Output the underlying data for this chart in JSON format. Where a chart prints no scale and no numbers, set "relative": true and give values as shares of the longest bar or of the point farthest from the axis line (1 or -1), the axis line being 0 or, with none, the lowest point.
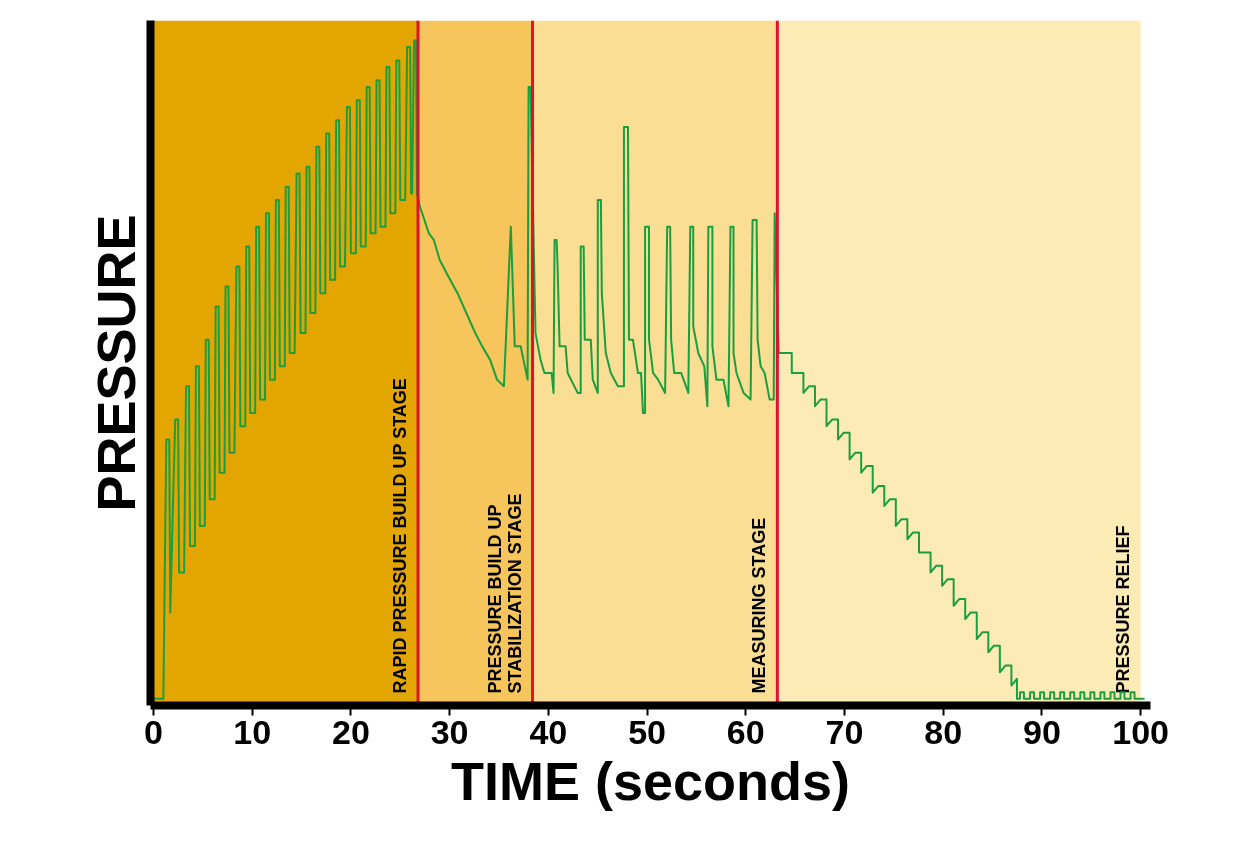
{
  "chart_data": {
    "type": "line",
    "relative": true,
    "xlabel": "TIME (seconds)",
    "ylabel": "PRESSURE",
    "xlim": [
      -0.3,
      101
    ],
    "xticks": [
      0,
      10,
      20,
      30,
      40,
      50,
      60,
      70,
      80,
      90,
      100
    ],
    "grid": false,
    "line_style": "solid",
    "bands": [
      {
        "axis": "x",
        "from": 0,
        "to": 26.8,
        "label": "RAPID PRESSURE BUILD UP STAGE",
        "color": "#e3a600"
      },
      {
        "axis": "x",
        "from": 26.8,
        "to": 38.4,
        "label": "PRESSURE BUILD UP\nSTABILIZATION STAGE",
        "color": "#f6c65c"
      },
      {
        "axis": "x",
        "from": 38.4,
        "to": 63.2,
        "label": "MEASURING STAGE",
        "color": "#f9de94"
      },
      {
        "axis": "x",
        "from": 63.2,
        "to": 100,
        "label": "PRESSURE RELIEF",
        "color": "#fdebb5"
      }
    ],
    "ref_lines": [
      {
        "axis": "x",
        "value": 26.8,
        "label": null,
        "color": "#e0102f"
      },
      {
        "axis": "x",
        "value": 38.4,
        "label": null,
        "color": "#e0102f"
      },
      {
        "axis": "x",
        "value": 63.2,
        "label": null,
        "color": "#e0102f"
      }
    ],
    "series": [
      {
        "color": "#1a9e3f",
        "x": [
          0,
          1.0,
          1.3,
          1.6,
          1.7,
          2.2,
          2.5,
          2.6,
          3.1,
          3.3,
          3.6,
          3.7,
          4.2,
          4.3,
          4.6,
          4.7,
          5.2,
          5.3,
          5.6,
          5.7,
          6.2,
          6.3,
          6.6,
          6.7,
          7.2,
          7.3,
          7.6,
          7.7,
          8.2,
          8.4,
          8.7,
          8.8,
          9.3,
          9.4,
          9.7,
          9.8,
          10.3,
          10.4,
          10.7,
          10.8,
          11.3,
          11.4,
          11.7,
          11.8,
          12.3,
          12.4,
          12.7,
          12.8,
          13.3,
          13.4,
          13.7,
          13.8,
          14.3,
          14.5,
          14.8,
          14.9,
          15.4,
          15.5,
          15.8,
          15.9,
          16.4,
          16.5,
          16.8,
          16.9,
          17.4,
          17.5,
          17.8,
          17.9,
          18.4,
          18.5,
          18.8,
          18.9,
          19.4,
          19.6,
          19.9,
          20.0,
          20.5,
          20.6,
          20.9,
          21.0,
          21.5,
          21.6,
          21.9,
          22.0,
          22.5,
          22.6,
          22.9,
          23.0,
          23.5,
          23.6,
          23.9,
          24.0,
          24.5,
          24.6,
          24.9,
          25.0,
          25.5,
          25.7,
          26.0,
          26.1,
          26.2,
          26.4,
          26.6,
          26.7,
          27.0,
          27.9,
          28.4,
          29.0,
          29.7,
          30.8,
          31.1,
          32.0,
          32.6,
          33.3,
          34.1,
          34.8,
          35.5,
          36.2,
          36.6,
          37.2,
          37.9,
          38.0,
          38.2,
          38.7,
          39.21,
          39.61,
          40.33,
          40.53,
          40.63,
          40.84,
          40.94,
          41.14,
          41.75,
          41.96,
          42.97,
          43.28,
          43.28,
          43.58,
          43.69,
          44.3,
          44.5,
          45.01,
          45.01,
          45.32,
          45.42,
          45.82,
          46.33,
          47.05,
          47.66,
          47.66,
          48.07,
          48.17,
          48.57,
          49.08,
          49.39,
          49.59,
          49.8,
          49.8,
          50.2,
          50.2,
          50.61,
          51.12,
          51.83,
          52.04,
          52.34,
          52.44,
          52.75,
          53.46,
          54.18,
          54.38,
          54.68,
          54.68,
          55.19,
          55.8,
          56.11,
          56.21,
          56.62,
          56.62,
          57.03,
          57.74,
          58.25,
          58.45,
          58.76,
          58.76,
          59.06,
          59.78,
          60.49,
          60.69,
          61.1,
          61.2,
          61.51,
          61.91,
          62.42,
          62.83,
          62.93,
          63.34,
          64.05,
          64.66,
          64.66,
          65.22,
          65.84,
          65.84,
          66.4,
          67.01,
          67.01,
          67.57,
          68.18,
          68.18,
          68.74,
          69.35,
          69.35,
          69.91,
          70.52,
          70.52,
          71.08,
          71.69,
          71.69,
          72.25,
          72.86,
          72.86,
          73.42,
          74.03,
          74.03,
          74.59,
          75.2,
          75.2,
          75.76,
          76.37,
          76.37,
          76.93,
          77.55,
          77.55,
          78.11,
          78.72,
          78.72,
          79.28,
          79.89,
          79.89,
          80.45,
          81.06,
          81.06,
          81.62,
          82.23,
          82.23,
          82.79,
          83.4,
          83.4,
          83.96,
          84.57,
          84.57,
          85.13,
          85.74,
          85.74,
          86.3,
          86.91,
          86.91,
          87.47,
          87.47,
          87.78,
          87.78,
          88.18,
          88.18,
          88.8,
          88.8,
          89.2,
          89.2,
          89.82,
          89.82,
          90.22,
          90.22,
          90.84,
          90.84,
          91.24,
          91.24,
          91.85,
          91.85,
          92.25,
          92.25,
          92.87,
          92.87,
          93.27,
          93.27,
          93.89,
          93.89,
          94.29,
          94.29,
          94.91,
          94.91,
          95.31,
          95.31,
          95.93,
          95.93,
          96.33,
          96.33,
          96.95,
          96.95,
          97.35,
          97.35,
          97.96,
          97.96,
          98.36,
          98.36,
          98.98,
          98.98,
          99.38,
          99.38,
          100.4
        ],
        "values": [
          0.01,
          0.01,
          0.4,
          0.4,
          0.14,
          0.43,
          0.43,
          0.2,
          0.2,
          0.48,
          0.48,
          0.24,
          0.24,
          0.51,
          0.51,
          0.27,
          0.27,
          0.55,
          0.55,
          0.31,
          0.31,
          0.6,
          0.6,
          0.35,
          0.35,
          0.63,
          0.63,
          0.38,
          0.38,
          0.66,
          0.66,
          0.42,
          0.42,
          0.69,
          0.69,
          0.44,
          0.44,
          0.72,
          0.72,
          0.46,
          0.46,
          0.74,
          0.74,
          0.49,
          0.49,
          0.76,
          0.76,
          0.51,
          0.51,
          0.78,
          0.78,
          0.53,
          0.53,
          0.8,
          0.8,
          0.56,
          0.56,
          0.81,
          0.81,
          0.59,
          0.59,
          0.84,
          0.84,
          0.62,
          0.62,
          0.86,
          0.86,
          0.64,
          0.64,
          0.88,
          0.88,
          0.66,
          0.66,
          0.9,
          0.9,
          0.68,
          0.68,
          0.91,
          0.91,
          0.69,
          0.69,
          0.93,
          0.93,
          0.71,
          0.71,
          0.94,
          0.94,
          0.72,
          0.72,
          0.96,
          0.96,
          0.74,
          0.74,
          0.97,
          0.97,
          0.76,
          0.76,
          0.99,
          0.99,
          0.77,
          0.77,
          1.0,
          1.0,
          0.77,
          0.75,
          0.71,
          0.7,
          0.67,
          0.65,
          0.62,
          0.61,
          0.58,
          0.56,
          0.54,
          0.52,
          0.49,
          0.48,
          0.72,
          0.54,
          0.54,
          0.49,
          0.93,
          0.93,
          0.56,
          0.52,
          0.5,
          0.5,
          0.47,
          0.7,
          0.7,
          0.66,
          0.54,
          0.54,
          0.5,
          0.47,
          0.47,
          0.69,
          0.69,
          0.55,
          0.55,
          0.49,
          0.47,
          0.76,
          0.76,
          0.62,
          0.53,
          0.5,
          0.48,
          0.48,
          0.87,
          0.87,
          0.55,
          0.55,
          0.5,
          0.5,
          0.44,
          0.44,
          0.72,
          0.72,
          0.55,
          0.5,
          0.49,
          0.47,
          0.72,
          0.72,
          0.55,
          0.5,
          0.5,
          0.47,
          0.72,
          0.72,
          0.57,
          0.53,
          0.51,
          0.45,
          0.72,
          0.72,
          0.54,
          0.49,
          0.49,
          0.45,
          0.72,
          0.72,
          0.53,
          0.5,
          0.47,
          0.46,
          0.73,
          0.73,
          0.55,
          0.51,
          0.5,
          0.46,
          0.46,
          0.74,
          0.53,
          0.53,
          0.53,
          0.5,
          0.5,
          0.5,
          0.47,
          0.48,
          0.48,
          0.45,
          0.46,
          0.46,
          0.42,
          0.43,
          0.43,
          0.4,
          0.41,
          0.41,
          0.37,
          0.38,
          0.38,
          0.35,
          0.36,
          0.36,
          0.32,
          0.33,
          0.33,
          0.3,
          0.31,
          0.31,
          0.27,
          0.28,
          0.28,
          0.25,
          0.26,
          0.26,
          0.23,
          0.23,
          0.23,
          0.2,
          0.21,
          0.21,
          0.18,
          0.19,
          0.19,
          0.15,
          0.16,
          0.16,
          0.13,
          0.14,
          0.14,
          0.1,
          0.11,
          0.11,
          0.08,
          0.09,
          0.09,
          0.05,
          0.06,
          0.06,
          0.03,
          0.04,
          0.01,
          0.01,
          0.02,
          0.02,
          0.01,
          0.01,
          0.02,
          0.02,
          0.01,
          0.01,
          0.02,
          0.02,
          0.01,
          0.01,
          0.02,
          0.02,
          0.01,
          0.01,
          0.02,
          0.02,
          0.01,
          0.01,
          0.02,
          0.02,
          0.01,
          0.01,
          0.02,
          0.02,
          0.01,
          0.01,
          0.02,
          0.02,
          0.01,
          0.01,
          0.02,
          0.02,
          0.01,
          0.01,
          0.02,
          0.02,
          0.01,
          0.01,
          0.02,
          0.02,
          0.01,
          0.01,
          0.02,
          0.02,
          0.01,
          0.01
        ]
      }
    ]
  }
}
